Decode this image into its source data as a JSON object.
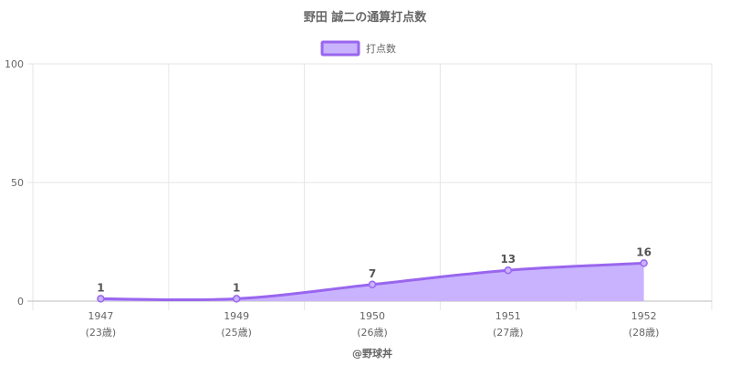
{
  "chart_data": {
    "type": "area",
    "title": "野田 誠二の通算打点数",
    "categories": [
      "1947",
      "1949",
      "1950",
      "1951",
      "1952"
    ],
    "category_sublabels": [
      "(23歳)",
      "(25歳)",
      "(26歳)",
      "(27歳)",
      "(28歳)"
    ],
    "series": [
      {
        "name": "打点数",
        "values": [
          1,
          1,
          7,
          13,
          16
        ]
      }
    ],
    "y_ticks": [
      0,
      50,
      100
    ],
    "ylim": [
      0,
      100
    ],
    "grid": true,
    "legend_position": "top",
    "colors": {
      "line": "#9966ee",
      "fill": "#c9b3ff"
    },
    "credit": "@野球丼"
  }
}
